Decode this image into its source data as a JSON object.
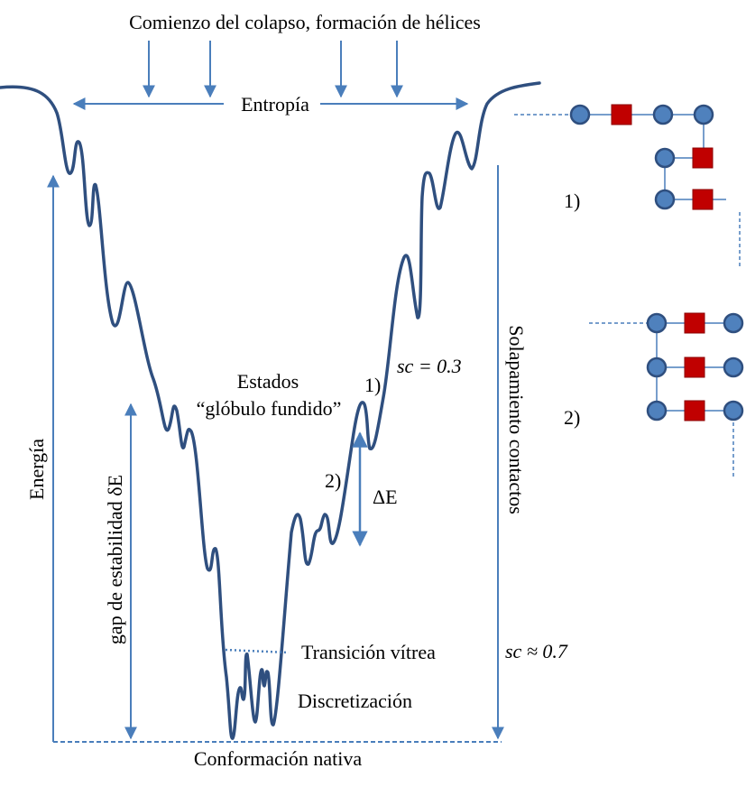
{
  "labels": {
    "collapse": "Comienzo del colapso, formación de hélices",
    "entropy": "Entropía",
    "energy": "Energía",
    "stability_gap": "gap de estabilidad δE",
    "contact_overlap": "Solapamiento contactos",
    "molten_globule_line1": "Estados",
    "molten_globule_line2": "“glóbulo fundido”",
    "glass_transition": "Transición vítrea",
    "discretization": "Discretización",
    "native": "Conformación nativa",
    "delta_e": "ΔE",
    "sc_03": "sc = 0.3",
    "sc_07": "sc ≈ 0.7",
    "state1_curve": "1)",
    "state2_curve": "2)",
    "state1_side": "1)",
    "state2_side": "2)"
  },
  "colors": {
    "curve": "#2F4F7F",
    "arrow": "#4A7EBB",
    "bead": "#4F81BD",
    "bead_stroke": "#2F4F7F",
    "square": "#C00000",
    "bond": "#4A7EBB",
    "glass_dots": "#4A7EBB"
  }
}
